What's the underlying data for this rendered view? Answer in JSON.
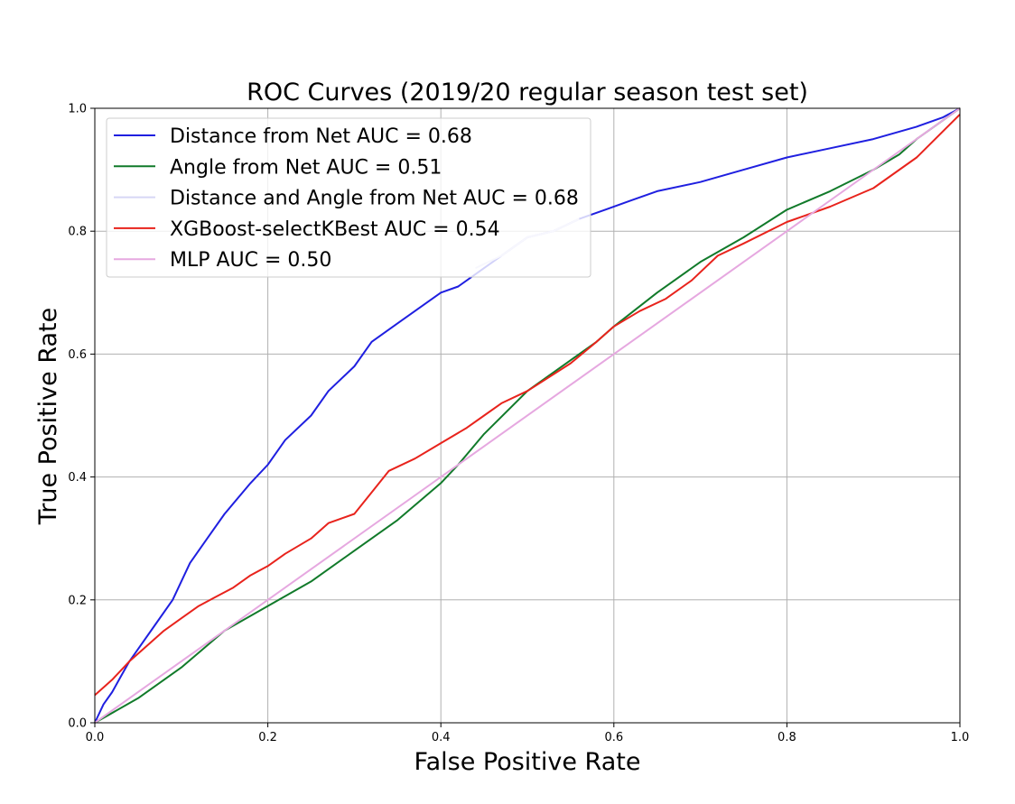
{
  "chart_data": {
    "type": "line",
    "title": "ROC Curves (2019/20 regular season test set)",
    "xlabel": "False Positive Rate",
    "ylabel": "True Positive Rate",
    "xlim": [
      0,
      1
    ],
    "ylim": [
      0,
      1
    ],
    "grid": true,
    "legend_position": "top-left",
    "x_ticks": [
      "0.0",
      "0.2",
      "0.4",
      "0.6",
      "0.8",
      "1.0"
    ],
    "y_ticks": [
      "0.0",
      "0.2",
      "0.4",
      "0.6",
      "0.8",
      "1.0"
    ],
    "series": [
      {
        "name": "Distance from Net AUC = 0.68",
        "color": "#1f1fe0",
        "x": [
          0,
          0.01,
          0.02,
          0.03,
          0.04,
          0.05,
          0.07,
          0.09,
          0.11,
          0.13,
          0.15,
          0.18,
          0.2,
          0.22,
          0.25,
          0.27,
          0.3,
          0.32,
          0.35,
          0.38,
          0.4,
          0.42,
          0.45,
          0.47,
          0.5,
          0.53,
          0.56,
          0.59,
          0.62,
          0.65,
          0.7,
          0.75,
          0.8,
          0.85,
          0.9,
          0.95,
          0.98,
          1.0
        ],
        "y": [
          0,
          0.03,
          0.05,
          0.075,
          0.1,
          0.12,
          0.16,
          0.2,
          0.26,
          0.3,
          0.34,
          0.39,
          0.42,
          0.46,
          0.5,
          0.54,
          0.58,
          0.62,
          0.65,
          0.68,
          0.7,
          0.71,
          0.74,
          0.76,
          0.79,
          0.8,
          0.82,
          0.835,
          0.85,
          0.865,
          0.88,
          0.9,
          0.92,
          0.935,
          0.95,
          0.97,
          0.985,
          1.0
        ]
      },
      {
        "name": "Angle from Net AUC = 0.51",
        "color": "#117a2a",
        "x": [
          0,
          0.05,
          0.1,
          0.15,
          0.2,
          0.25,
          0.3,
          0.35,
          0.4,
          0.42,
          0.45,
          0.5,
          0.55,
          0.58,
          0.6,
          0.65,
          0.7,
          0.75,
          0.8,
          0.85,
          0.9,
          0.93,
          0.95,
          0.97,
          1.0
        ],
        "y": [
          0,
          0.04,
          0.09,
          0.15,
          0.19,
          0.23,
          0.28,
          0.33,
          0.39,
          0.42,
          0.47,
          0.54,
          0.59,
          0.62,
          0.645,
          0.7,
          0.75,
          0.79,
          0.835,
          0.865,
          0.9,
          0.925,
          0.95,
          0.97,
          1.0
        ]
      },
      {
        "name": "Distance and Angle from Net AUC = 0.68",
        "color": "#d6d6f5",
        "x": [
          0.44,
          0.47,
          0.5,
          0.53,
          0.56
        ],
        "y": [
          0.74,
          0.76,
          0.79,
          0.8,
          0.82
        ]
      },
      {
        "name": "XGBoost-selectKBest AUC = 0.54",
        "color": "#e8231c",
        "x": [
          0,
          0.02,
          0.04,
          0.06,
          0.08,
          0.1,
          0.12,
          0.14,
          0.16,
          0.18,
          0.2,
          0.22,
          0.25,
          0.27,
          0.3,
          0.32,
          0.34,
          0.37,
          0.4,
          0.43,
          0.45,
          0.47,
          0.5,
          0.55,
          0.58,
          0.6,
          0.63,
          0.66,
          0.69,
          0.72,
          0.75,
          0.8,
          0.85,
          0.9,
          0.95,
          1.0
        ],
        "y": [
          0.045,
          0.07,
          0.1,
          0.125,
          0.15,
          0.17,
          0.19,
          0.205,
          0.22,
          0.24,
          0.255,
          0.275,
          0.3,
          0.325,
          0.34,
          0.375,
          0.41,
          0.43,
          0.455,
          0.48,
          0.5,
          0.52,
          0.54,
          0.585,
          0.62,
          0.645,
          0.67,
          0.69,
          0.72,
          0.76,
          0.78,
          0.815,
          0.84,
          0.87,
          0.92,
          0.99
        ]
      },
      {
        "name": "MLP AUC = 0.50",
        "color": "#e6a8e0",
        "x": [
          0,
          1
        ],
        "y": [
          0,
          1
        ]
      }
    ]
  }
}
